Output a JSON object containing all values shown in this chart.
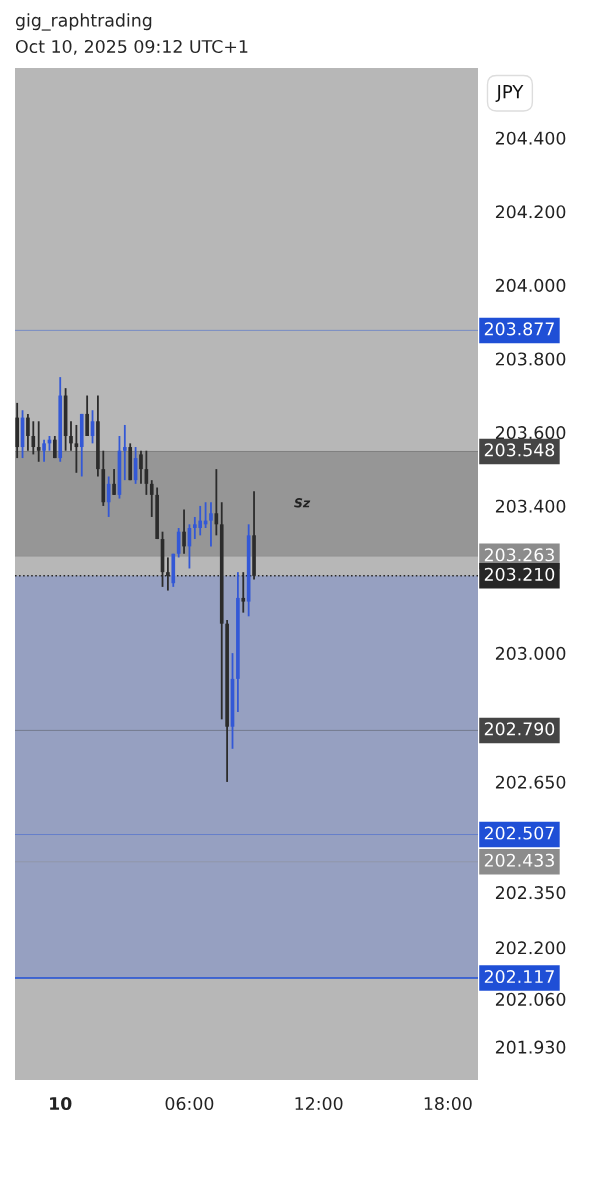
{
  "chart_data": {
    "type": "candlestick",
    "title": "gig_raphtrading",
    "subtitle": "Oct 10, 2025 09:12 UTC+1",
    "annotations": [
      "JPY"
    ],
    "x": [
      "2025-10-09T22:00",
      "2025-10-09T22:15",
      "2025-10-09T22:30",
      "2025-10-09T22:45",
      "2025-10-09T23:00",
      "2025-10-09T23:15",
      "2025-10-09T23:30",
      "2025-10-09T23:45",
      "2025-10-10T00:00",
      "2025-10-10T00:15",
      "2025-10-10T00:30",
      "2025-10-10T00:45",
      "2025-10-10T01:00",
      "2025-10-10T01:15",
      "2025-10-10T01:30",
      "2025-10-10T01:45",
      "2025-10-10T02:00",
      "2025-10-10T02:15",
      "2025-10-10T02:30",
      "2025-10-10T02:45",
      "2025-10-10T03:00",
      "2025-10-10T03:15",
      "2025-10-10T03:30",
      "2025-10-10T03:45",
      "2025-10-10T04:00",
      "2025-10-10T04:15",
      "2025-10-10T04:30",
      "2025-10-10T04:45",
      "2025-10-10T05:00",
      "2025-10-10T05:15",
      "2025-10-10T05:30",
      "2025-10-10T05:45",
      "2025-10-10T06:00",
      "2025-10-10T06:15",
      "2025-10-10T06:30",
      "2025-10-10T06:45",
      "2025-10-10T07:00",
      "2025-10-10T07:15",
      "2025-10-10T07:30",
      "2025-10-10T07:45",
      "2025-10-10T08:00",
      "2025-10-10T08:15",
      "2025-10-10T08:30",
      "2025-10-10T08:45",
      "2025-10-10T09:00"
    ],
    "ohlc": [
      [
        203.64,
        203.68,
        203.53,
        203.56
      ],
      [
        203.56,
        203.66,
        203.53,
        203.64
      ],
      [
        203.64,
        203.65,
        203.55,
        203.59
      ],
      [
        203.59,
        203.63,
        203.54,
        203.56
      ],
      [
        203.56,
        203.63,
        203.52,
        203.55
      ],
      [
        203.55,
        203.58,
        203.52,
        203.57
      ],
      [
        203.57,
        203.59,
        203.55,
        203.58
      ],
      [
        203.58,
        203.59,
        203.53,
        203.53
      ],
      [
        203.53,
        203.75,
        203.52,
        203.7
      ],
      [
        203.7,
        203.72,
        203.55,
        203.59
      ],
      [
        203.59,
        203.63,
        203.55,
        203.57
      ],
      [
        203.57,
        203.62,
        203.49,
        203.56
      ],
      [
        203.56,
        203.65,
        203.48,
        203.65
      ],
      [
        203.65,
        203.7,
        203.59,
        203.59
      ],
      [
        203.59,
        203.66,
        203.57,
        203.63
      ],
      [
        203.63,
        203.7,
        203.48,
        203.5
      ],
      [
        203.5,
        203.55,
        203.4,
        203.41
      ],
      [
        203.41,
        203.48,
        203.37,
        203.46
      ],
      [
        203.46,
        203.5,
        203.43,
        203.43
      ],
      [
        203.43,
        203.59,
        203.42,
        203.55
      ],
      [
        203.55,
        203.62,
        203.47,
        203.56
      ],
      [
        203.56,
        203.57,
        203.47,
        203.47
      ],
      [
        203.47,
        203.56,
        203.46,
        203.53
      ],
      [
        203.54,
        203.55,
        203.46,
        203.5
      ],
      [
        203.5,
        203.55,
        203.43,
        203.46
      ],
      [
        203.46,
        203.47,
        203.37,
        203.43
      ],
      [
        203.43,
        203.45,
        203.31,
        203.31
      ],
      [
        203.31,
        203.33,
        203.18,
        203.22
      ],
      [
        203.22,
        203.26,
        203.17,
        203.21
      ],
      [
        203.19,
        203.27,
        203.18,
        203.27
      ],
      [
        203.27,
        203.34,
        203.26,
        203.33
      ],
      [
        203.33,
        203.39,
        203.27,
        203.29
      ],
      [
        203.29,
        203.35,
        203.23,
        203.34
      ],
      [
        203.34,
        203.37,
        203.31,
        203.35
      ],
      [
        203.34,
        203.4,
        203.32,
        203.36
      ],
      [
        203.35,
        203.41,
        203.34,
        203.36
      ],
      [
        203.36,
        203.41,
        203.29,
        203.38
      ],
      [
        203.38,
        203.5,
        203.32,
        203.35
      ],
      [
        203.35,
        203.41,
        202.82,
        203.08
      ],
      [
        203.08,
        203.09,
        202.65,
        202.8
      ],
      [
        202.8,
        203.0,
        202.74,
        202.93
      ],
      [
        202.93,
        203.22,
        202.84,
        203.15
      ],
      [
        203.15,
        203.22,
        203.11,
        203.14
      ],
      [
        203.14,
        203.35,
        203.1,
        203.32
      ],
      [
        203.32,
        203.44,
        203.2,
        203.21
      ]
    ],
    "colors": [
      "#2b2b2b",
      "#3358d6",
      "#2b2b2b",
      "#2b2b2b",
      "#2b2b2b",
      "#3358d6",
      "#3358d6",
      "#2b2b2b",
      "#3358d6",
      "#2b2b2b",
      "#2b2b2b",
      "#2b2b2b",
      "#3358d6",
      "#2b2b2b",
      "#3358d6",
      "#2b2b2b",
      "#2b2b2b",
      "#3358d6",
      "#2b2b2b",
      "#3358d6",
      "#3358d6",
      "#2b2b2b",
      "#3358d6",
      "#2b2b2b",
      "#2b2b2b",
      "#2b2b2b",
      "#2b2b2b",
      "#2b2b2b",
      "#2b2b2b",
      "#3358d6",
      "#3358d6",
      "#2b2b2b",
      "#3358d6",
      "#3358d6",
      "#3358d6",
      "#3358d6",
      "#3358d6",
      "#2b2b2b",
      "#2b2b2b",
      "#2b2b2b",
      "#3358d6",
      "#3358d6",
      "#2b2b2b",
      "#3358d6",
      "#2b2b2b"
    ],
    "xlim": [
      "2025-10-09T21:54",
      "2025-10-10T19:24"
    ],
    "xticks": [
      {
        "value": "2025-10-10T00:00",
        "label": "10"
      },
      {
        "value": "2025-10-10T06:00",
        "label": "06:00"
      },
      {
        "value": "2025-10-10T12:00",
        "label": "12:00"
      },
      {
        "value": "2025-10-10T18:00",
        "label": "18:00"
      }
    ],
    "ylim": [
      201.84,
      204.59
    ],
    "yticks": [
      {
        "value": 204.4,
        "label": "204.400"
      },
      {
        "value": 204.2,
        "label": "204.200"
      },
      {
        "value": 204.0,
        "label": "204.000"
      },
      {
        "value": 203.8,
        "label": "203.800"
      },
      {
        "value": 203.6,
        "label": "203.600"
      },
      {
        "value": 203.4,
        "label": "203.400"
      },
      {
        "value": 203.0,
        "label": "203.000"
      },
      {
        "value": 202.65,
        "label": "202.650"
      },
      {
        "value": 202.35,
        "label": "202.350"
      },
      {
        "value": 202.2,
        "label": "202.200"
      },
      {
        "value": 202.06,
        "label": "202.060"
      },
      {
        "value": 201.93,
        "label": "201.930"
      }
    ],
    "bands": [
      {
        "axis": "y",
        "from": 202.117,
        "to": 203.21,
        "color": "#6f86cf"
      },
      {
        "axis": "y",
        "from": 203.263,
        "to": 203.548,
        "color": "#6e6e6e",
        "label": "Sz"
      }
    ],
    "ref_lines": [
      {
        "axis": "y",
        "value": 203.877,
        "label": "203.877",
        "color": "#1f4fd6"
      },
      {
        "axis": "y",
        "value": 203.548,
        "label": "203.548",
        "color": "#454545"
      },
      {
        "axis": "y",
        "value": 203.263,
        "label": "203.263",
        "color": "#8c8c8c"
      },
      {
        "axis": "y",
        "value": 203.21,
        "label": "203.210",
        "color": "#262626",
        "line_style": "dotted"
      },
      {
        "axis": "y",
        "value": 202.79,
        "label": "202.790",
        "color": "#454545"
      },
      {
        "axis": "y",
        "value": 202.507,
        "label": "202.507",
        "color": "#1f4fd6"
      },
      {
        "axis": "y",
        "value": 202.433,
        "label": "202.433",
        "color": "#8c8c8c"
      },
      {
        "axis": "y",
        "value": 202.117,
        "label": "202.117",
        "color": "#1f4fd6",
        "line_style": "solid"
      }
    ],
    "grid": false
  }
}
